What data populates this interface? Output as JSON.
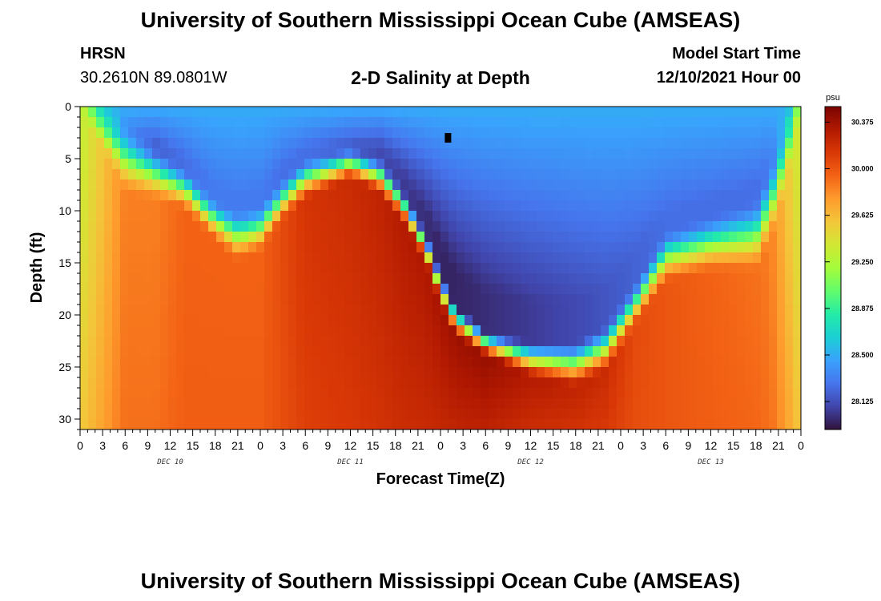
{
  "header": {
    "title": "University of Southern Mississippi Ocean Cube (AMSEAS)",
    "station": "HRSN",
    "coordinates": "30.2610N  89.0801W",
    "plot_title": "2-D Salinity at Depth",
    "model_start_label": "Model Start Time",
    "model_start_value": "12/10/2021 Hour 00"
  },
  "footer": {
    "title": "University of Southern Mississippi Ocean Cube (AMSEAS)"
  },
  "chart_data": {
    "type": "heatmap",
    "title": "2-D Salinity at Depth",
    "xlabel": "Forecast Time(Z)",
    "ylabel": "Depth (ft)",
    "xlim": [
      0,
      96
    ],
    "ylim": [
      0,
      31
    ],
    "x_ticks": [
      0,
      3,
      6,
      9,
      12,
      15,
      18,
      21,
      24,
      27,
      30,
      33,
      36,
      39,
      42,
      45,
      48,
      51,
      54,
      57,
      60,
      63,
      66,
      69,
      72,
      75,
      78,
      81,
      84,
      87,
      90,
      93,
      96
    ],
    "x_tick_labels": [
      "0",
      "3",
      "6",
      "9",
      "12",
      "15",
      "18",
      "21",
      "0",
      "3",
      "6",
      "9",
      "12",
      "15",
      "18",
      "21",
      "0",
      "3",
      "6",
      "9",
      "12",
      "15",
      "18",
      "21",
      "0",
      "3",
      "6",
      "9",
      "12",
      "15",
      "18",
      "21",
      "0"
    ],
    "day_labels": [
      {
        "label": "DEC 10",
        "center_hour": 12
      },
      {
        "label": "DEC 11",
        "center_hour": 36
      },
      {
        "label": "DEC 12",
        "center_hour": 60
      },
      {
        "label": "DEC 13",
        "center_hour": 84
      }
    ],
    "y_ticks": [
      0,
      5,
      10,
      15,
      20,
      25,
      30
    ],
    "y_tick_labels": [
      "0",
      "5",
      "10",
      "15",
      "20",
      "25",
      "30"
    ],
    "colorbar": {
      "unit": "psu",
      "min": 27.9,
      "max": 30.5,
      "ticks": [
        30.375,
        30.0,
        29.625,
        29.25,
        28.875,
        28.5,
        28.125
      ],
      "tick_labels": [
        "30.375",
        "30.000",
        "29.625",
        "29.250",
        "28.875",
        "28.500",
        "28.125"
      ],
      "colors": [
        "#30123b",
        "#4145ab",
        "#4675ed",
        "#39a2fc",
        "#1bcfd4",
        "#24eca6",
        "#61fc6c",
        "#a4fc3b",
        "#d1e834",
        "#f3c63a",
        "#fe9b2d",
        "#f36315",
        "#d93806",
        "#b11901",
        "#7a0402"
      ]
    },
    "surface_value": 28.5,
    "bottom_value": 30.0,
    "layer_profile": {
      "hours": [
        0,
        6,
        10,
        14,
        18,
        21,
        24,
        27,
        30,
        36,
        40,
        43,
        46,
        48,
        50,
        54,
        60,
        66,
        70,
        74,
        78,
        84,
        90,
        92,
        94,
        96
      ],
      "fresh_depth_ft": [
        0,
        2,
        4,
        6,
        9,
        10,
        9.5,
        7,
        5,
        4,
        5,
        8,
        12,
        16,
        19,
        21.5,
        22.5,
        22.5,
        21,
        17,
        12,
        10.5,
        9,
        6,
        2,
        0
      ],
      "salt_depth_ft": [
        0,
        8.5,
        9,
        10,
        13,
        15,
        14,
        11,
        9,
        7,
        8.5,
        11,
        15,
        19,
        22,
        24,
        26,
        27,
        25.5,
        21,
        17,
        16,
        16,
        13,
        8,
        0
      ],
      "fresh_value": [
        29.3,
        28.4,
        28.2,
        28.25,
        28.3,
        28.3,
        28.3,
        28.25,
        28.25,
        28.2,
        28.1,
        28.05,
        28.0,
        27.97,
        27.97,
        28.0,
        28.05,
        28.1,
        28.15,
        28.2,
        28.25,
        28.25,
        28.25,
        28.3,
        28.6,
        29.3
      ],
      "salt_value": [
        29.3,
        29.85,
        29.85,
        29.95,
        29.95,
        29.95,
        29.95,
        30.05,
        30.15,
        30.2,
        30.25,
        30.3,
        30.32,
        30.35,
        30.38,
        30.4,
        30.3,
        30.25,
        30.2,
        30.05,
        30.0,
        29.95,
        29.9,
        29.85,
        29.6,
        29.3
      ]
    },
    "annotations": [
      {
        "text": "black marker",
        "hour": 49,
        "depth_ft": 3
      }
    ]
  }
}
